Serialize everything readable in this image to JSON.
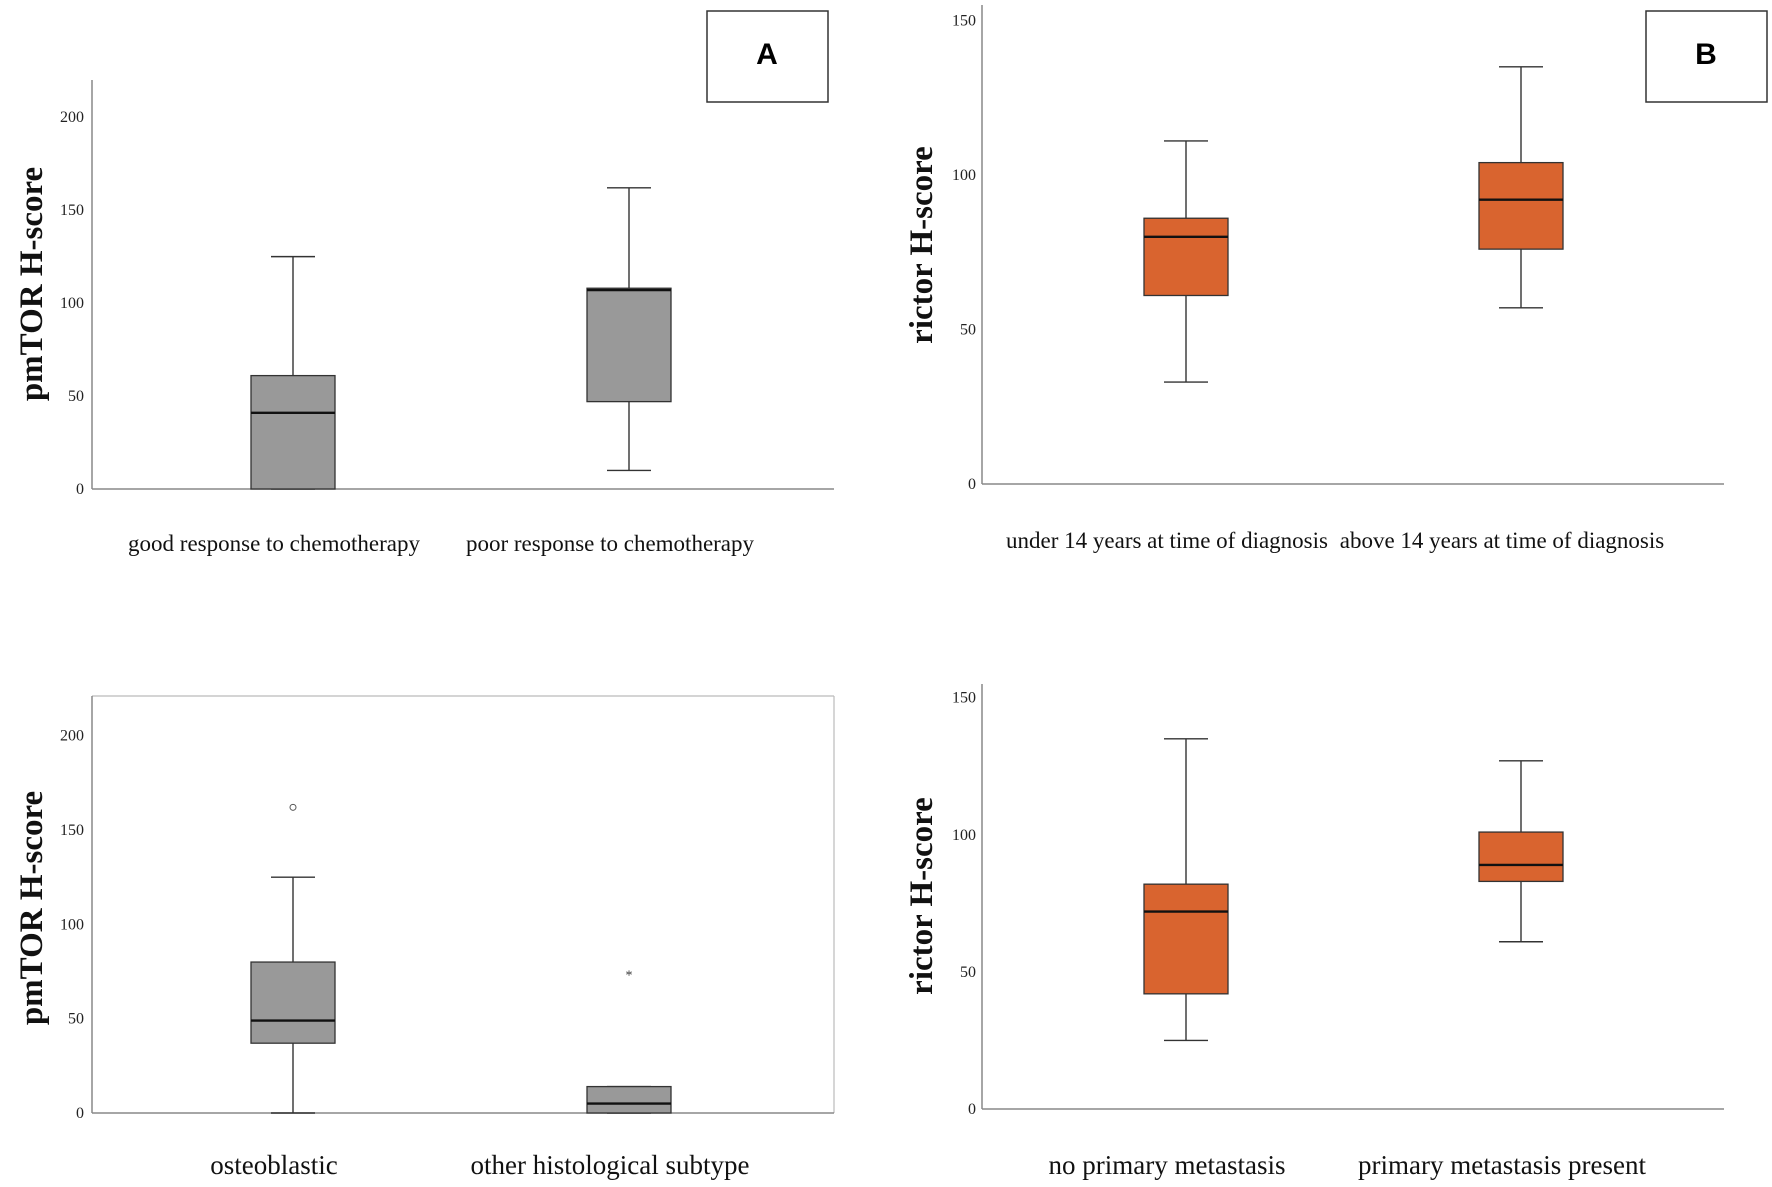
{
  "panel_labels": {
    "a": "A",
    "b": "B"
  },
  "colors": {
    "gray_box": "#999999",
    "orange_box": "#d9642f",
    "axis": "#888888",
    "line": "#333333"
  },
  "chart_data": [
    {
      "type": "boxplot",
      "id": "top-left",
      "title": "",
      "ylabel": "pmTOR H-score",
      "xlabel": "",
      "ylim": [
        0,
        220
      ],
      "yticks": [
        0,
        50,
        100,
        150,
        200
      ],
      "categories": [
        "good response to chemotherapy",
        "poor response to chemotherapy"
      ],
      "boxes": [
        {
          "whisker_low": 0,
          "q1": 0,
          "median": 41,
          "q3": 61,
          "whisker_high": 125,
          "outliers": [],
          "extremes": []
        },
        {
          "whisker_low": 10,
          "q1": 47,
          "median": 107,
          "q3": 108,
          "whisker_high": 162,
          "outliers": [],
          "extremes": []
        }
      ],
      "box_color": "#999999"
    },
    {
      "type": "boxplot",
      "id": "top-right",
      "title": "",
      "ylabel": "rictor H-score",
      "xlabel": "",
      "ylim": [
        0,
        155
      ],
      "yticks": [
        0,
        50,
        100,
        150
      ],
      "categories": [
        "under 14 years at time of diagnosis",
        "above 14 years at time of diagnosis"
      ],
      "boxes": [
        {
          "whisker_low": 33,
          "q1": 61,
          "median": 80,
          "q3": 86,
          "whisker_high": 111,
          "outliers": [],
          "extremes": []
        },
        {
          "whisker_low": 57,
          "q1": 76,
          "median": 92,
          "q3": 104,
          "whisker_high": 135,
          "outliers": [],
          "extremes": []
        }
      ],
      "box_color": "#d9642f"
    },
    {
      "type": "boxplot",
      "id": "bottom-left",
      "title": "",
      "ylabel": "pmTOR H-score",
      "xlabel": "",
      "ylim": [
        0,
        221
      ],
      "yticks": [
        0,
        50,
        100,
        150,
        200
      ],
      "categories": [
        "osteoblastic",
        "other histological subtype"
      ],
      "boxes": [
        {
          "whisker_low": 0,
          "q1": 37,
          "median": 49,
          "q3": 80,
          "whisker_high": 125,
          "outliers": [
            162
          ],
          "extremes": []
        },
        {
          "whisker_low": 0,
          "q1": 0,
          "median": 5,
          "q3": 14,
          "whisker_high": 14,
          "outliers": [],
          "extremes": [
            74
          ]
        }
      ],
      "box_color": "#999999"
    },
    {
      "type": "boxplot",
      "id": "bottom-right",
      "title": "",
      "ylabel": "rictor H-score",
      "xlabel": "",
      "ylim": [
        0,
        155
      ],
      "yticks": [
        0,
        50,
        100,
        150
      ],
      "categories": [
        "no primary metastasis",
        "primary metastasis present"
      ],
      "boxes": [
        {
          "whisker_low": 25,
          "q1": 42,
          "median": 72,
          "q3": 82,
          "whisker_high": 135,
          "outliers": [],
          "extremes": []
        },
        {
          "whisker_low": 61,
          "q1": 83,
          "median": 89,
          "q3": 101,
          "whisker_high": 127,
          "outliers": [],
          "extremes": []
        }
      ],
      "box_color": "#d9642f"
    }
  ]
}
